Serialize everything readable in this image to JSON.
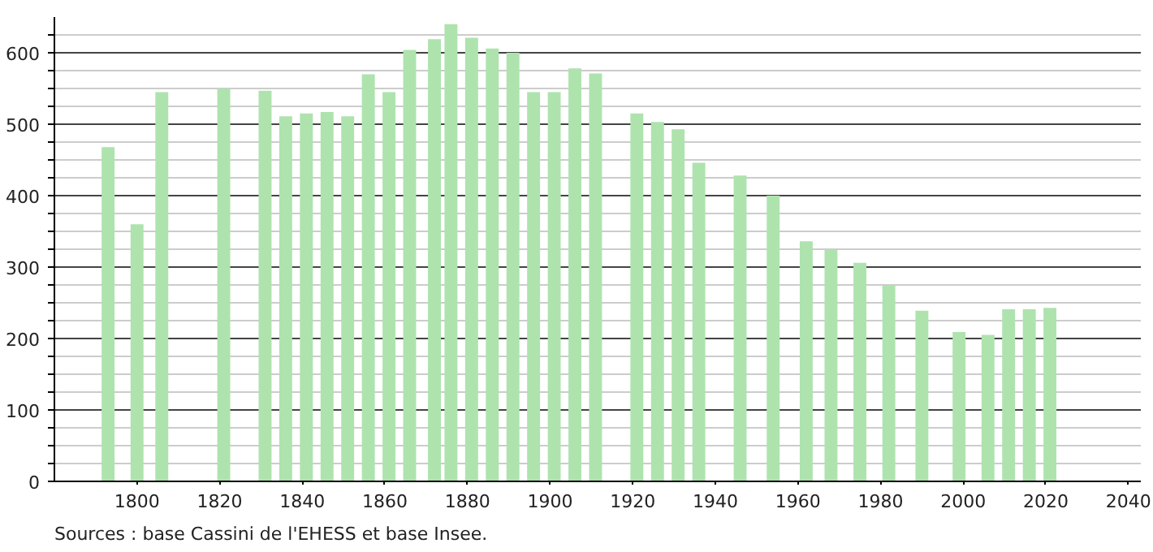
{
  "chart_data": {
    "type": "bar",
    "x": [
      1793,
      1800,
      1806,
      1821,
      1831,
      1836,
      1841,
      1846,
      1851,
      1856,
      1861,
      1866,
      1872,
      1876,
      1881,
      1886,
      1891,
      1896,
      1901,
      1906,
      1911,
      1921,
      1926,
      1931,
      1936,
      1946,
      1954,
      1962,
      1968,
      1975,
      1982,
      1990,
      1999,
      2006,
      2011,
      2016,
      2021
    ],
    "values": [
      468,
      360,
      545,
      550,
      547,
      511,
      515,
      517,
      511,
      570,
      545,
      604,
      619,
      640,
      621,
      606,
      600,
      545,
      545,
      578,
      571,
      515,
      503,
      493,
      446,
      428,
      400,
      336,
      325,
      306,
      274,
      239,
      209,
      205,
      241,
      241,
      243
    ],
    "color": "#aee3ae",
    "xlim": [
      1780,
      2043
    ],
    "xticks": [
      1800,
      1820,
      1840,
      1860,
      1880,
      1900,
      1920,
      1940,
      1960,
      1980,
      2000,
      2020,
      2040
    ],
    "ylim": [
      0,
      650
    ],
    "yticks": [
      0,
      {
        "value": 25,
        "label": null
      },
      {
        "value": 50,
        "label": null
      },
      {
        "value": 75,
        "label": null
      },
      100,
      {
        "value": 125,
        "label": null
      },
      {
        "value": 150,
        "label": null
      },
      {
        "value": 175,
        "label": null
      },
      200,
      {
        "value": 225,
        "label": null
      },
      {
        "value": 250,
        "label": null
      },
      {
        "value": 275,
        "label": null
      },
      300,
      {
        "value": 325,
        "label": null
      },
      {
        "value": 350,
        "label": null
      },
      {
        "value": 375,
        "label": null
      },
      400,
      {
        "value": 425,
        "label": null
      },
      {
        "value": 450,
        "label": null
      },
      {
        "value": 475,
        "label": null
      },
      500,
      {
        "value": 525,
        "label": null
      },
      {
        "value": 550,
        "label": null
      },
      {
        "value": 575,
        "label": null
      },
      600,
      {
        "value": 625,
        "label": null
      }
    ],
    "grid": "y",
    "annotations": [
      "Sources : base Cassini de l'EHESS et base Insee."
    ]
  }
}
